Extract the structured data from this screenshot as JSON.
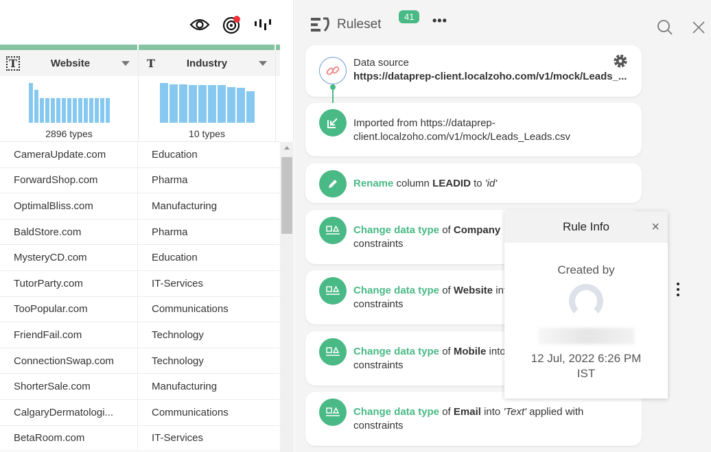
{
  "left": {
    "toolbar": {
      "icons": [
        "eye-icon",
        "target-icon",
        "chart-bars-icon"
      ],
      "notification_color": "#f0313c"
    },
    "columns": [
      {
        "name": "Website",
        "type_icon": "text-bracket-icon",
        "type_glyph": "T",
        "types_label": "2896 types",
        "hist": [
          100,
          82,
          62,
          62,
          62,
          62,
          62,
          62,
          62,
          62,
          62,
          62,
          62,
          62,
          62
        ]
      },
      {
        "name": "Industry",
        "type_icon": "text-icon",
        "type_glyph": "T",
        "types_label": "10 types",
        "hist": [
          100,
          96,
          96,
          94,
          94,
          94,
          94,
          90,
          88,
          80
        ]
      }
    ],
    "rows": [
      [
        "CameraUpdate.com",
        "Education"
      ],
      [
        "ForwardShop.com",
        "Pharma"
      ],
      [
        "OptimalBliss.com",
        "Manufacturing"
      ],
      [
        "BaldStore.com",
        "Pharma"
      ],
      [
        "MysteryCD.com",
        "Education"
      ],
      [
        "TutorParty.com",
        "IT-Services"
      ],
      [
        "TooPopular.com",
        "Communications"
      ],
      [
        "FriendFail.com",
        "Technology"
      ],
      [
        "ConnectionSwap.com",
        "Technology"
      ],
      [
        "ShorterSale.com",
        "Manufacturing"
      ],
      [
        "CalgaryDermatologi...",
        "Communications"
      ],
      [
        "BetaRoom.com",
        "IT-Services"
      ]
    ]
  },
  "ruleset": {
    "title": "Ruleset",
    "count": "41",
    "more": "•••",
    "accent": "#49b985",
    "datasource": {
      "label": "Data source",
      "url": "https://dataprep-client.localzoho.com/v1/mock/Leads_..."
    },
    "imported": "Imported from https://dataprep-client.localzoho.com/v1/mock/Leads_Leads.csv",
    "rename": {
      "action": "Rename",
      "t1": " column ",
      "col": "LEADID",
      "t2": " to ",
      "val": "'id'"
    },
    "changes": [
      {
        "action": "Change data type",
        "of": " of ",
        "col": "Company",
        "rest": "",
        "line2": "constraints"
      },
      {
        "action": "Change data type",
        "of": " of ",
        "col": "Website",
        "rest": " into",
        "line2": "constraints"
      },
      {
        "action": "Change data type",
        "of": " of ",
        "col": "Mobile",
        "rest": " into",
        "line2": "constraints"
      },
      {
        "action": "Change data type",
        "of": " of ",
        "col": "Email",
        "rest": " into ",
        "type": "'Text'",
        "rest2": " applied with",
        "line2": "constraints"
      }
    ]
  },
  "popup": {
    "title": "Rule Info",
    "close": "×",
    "created_by": "Created by",
    "date": "12 Jul, 2022 6:26 PM",
    "tz": "IST"
  }
}
